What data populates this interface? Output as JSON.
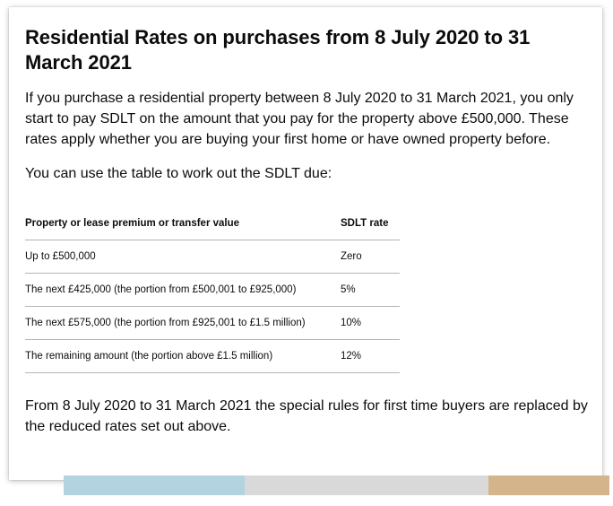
{
  "heading": "Residential Rates on purchases from 8 July 2020 to 31 March 2021",
  "intro": "If you purchase a residential property between 8 July 2020 to 31 March 2021, you only start to pay SDLT on the amount that you pay for the property above £500,000. These rates apply whether you are buying your first home or have owned property before.",
  "table_lead": "You can use the table to work out the SDLT due:",
  "table": {
    "headers": [
      "Property or lease premium or transfer value",
      "SDLT rate"
    ],
    "rows": [
      [
        "Up to £500,000",
        "Zero"
      ],
      [
        "The next £425,000 (the portion from £500,001 to £925,000)",
        "5%"
      ],
      [
        "The next £575,000 (the portion from £925,001 to £1.5 million)",
        "10%"
      ],
      [
        "The remaining amount (the portion above £1.5 million)",
        "12%"
      ]
    ]
  },
  "footer": "From 8 July 2020 to 31 March 2021 the special rules for first time buyers are replaced by the reduced rates set out above.",
  "colors": {
    "text": "#0b0c0c",
    "table_border": "#b1b4b6",
    "bar_blue": "#b3d3e1",
    "bar_grey": "#d9d9d9",
    "bar_tan": "#d4b48b"
  }
}
